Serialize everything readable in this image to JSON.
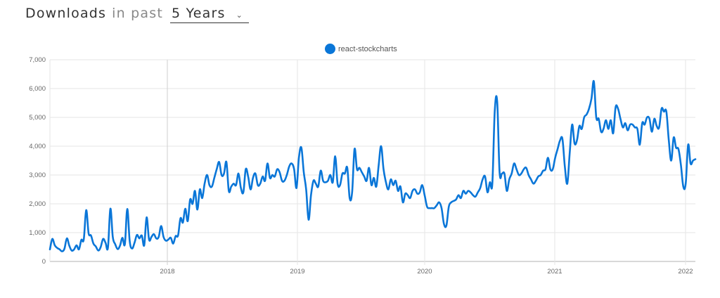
{
  "header": {
    "title": "Downloads",
    "connector": "in past",
    "period_selected": "5 Years"
  },
  "colors": {
    "series": "#0a76d8",
    "grid": "#e6e6e6",
    "axis": "#cccccc"
  },
  "chart_data": {
    "type": "line",
    "title": "",
    "xlabel": "",
    "ylabel": "",
    "ylim": [
      0,
      7000
    ],
    "yticks": [
      "0",
      "1,000",
      "2,000",
      "3,000",
      "4,000",
      "5,000",
      "6,000",
      "7,000"
    ],
    "xticks": [
      "2018",
      "2019",
      "2020",
      "2021",
      "2022"
    ],
    "legend": [
      "react-stockcharts"
    ],
    "legend_position": "top",
    "grid": true,
    "x_start": "2017-01 (approx)",
    "x_end": "2022-01 (approx)",
    "x_unit": "week",
    "series": [
      {
        "name": "react-stockcharts",
        "values": [
          420,
          780,
          560,
          470,
          420,
          350,
          440,
          800,
          550,
          380,
          420,
          560,
          420,
          750,
          760,
          1780,
          980,
          900,
          620,
          520,
          380,
          500,
          780,
          650,
          480,
          1830,
          850,
          600,
          430,
          550,
          820,
          600,
          1820,
          700,
          450,
          650,
          920,
          800,
          900,
          560,
          1530,
          760,
          850,
          950,
          800,
          850,
          1230,
          850,
          720,
          760,
          820,
          620,
          880,
          900,
          1500,
          1350,
          1830,
          1400,
          2150,
          2000,
          2450,
          1800,
          2500,
          2200,
          2700,
          3000,
          2650,
          2600,
          2900,
          3200,
          3450,
          3000,
          3050,
          3450,
          2450,
          2600,
          2700,
          2650,
          3050,
          2550,
          2400,
          3200,
          2950,
          2500,
          2900,
          3050,
          2650,
          2700,
          2950,
          2800,
          3400,
          2900,
          3000,
          2950,
          3200,
          3100,
          2800,
          2800,
          3000,
          3300,
          3400,
          3200,
          2550,
          3600,
          3950,
          3100,
          2500,
          1450,
          2300,
          2800,
          2700,
          2600,
          3150,
          2800,
          2750,
          2800,
          3000,
          2750,
          3650,
          2700,
          2650,
          3050,
          3050,
          3250,
          2200,
          2400,
          3900,
          3200,
          3250,
          3100,
          2950,
          2800,
          3250,
          2650,
          2900,
          2600,
          3350,
          4000,
          3200,
          2750,
          2500,
          2850,
          2650,
          2800,
          2450,
          2600,
          2050,
          2350,
          2300,
          2200,
          2450,
          2500,
          2350,
          2400,
          2650,
          2300,
          1900,
          1850,
          1850,
          1850,
          1950,
          2050,
          1850,
          1300,
          1250,
          1900,
          2050,
          2100,
          2150,
          2300,
          2200,
          2450,
          2350,
          2450,
          2400,
          2300,
          2250,
          2400,
          2550,
          2850,
          2950,
          2400,
          2750,
          2700,
          5200,
          5550,
          3100,
          3050,
          3050,
          2450,
          2850,
          3050,
          3400,
          3200,
          3000,
          3050,
          3200,
          3250,
          3000,
          2850,
          2700,
          2800,
          2950,
          3000,
          3150,
          3200,
          3600,
          3200,
          3200,
          3600,
          3900,
          4200,
          4250,
          3300,
          2700,
          3750,
          4750,
          4100,
          4200,
          4700,
          4600,
          5000,
          5100,
          5300,
          5650,
          6250,
          5000,
          4950,
          4500,
          4600,
          4900,
          4600,
          4900,
          4450,
          5350,
          5300,
          4950,
          4650,
          4800,
          4550,
          4750,
          4750,
          4650,
          4600,
          4050,
          4800,
          4750,
          5000,
          4950,
          4500,
          4950,
          4700,
          4650,
          5300,
          5200,
          5200,
          4200,
          3500,
          4300,
          3950,
          3900,
          3350,
          2600,
          2700,
          4050,
          3400,
          3500,
          3550
        ]
      }
    ]
  }
}
